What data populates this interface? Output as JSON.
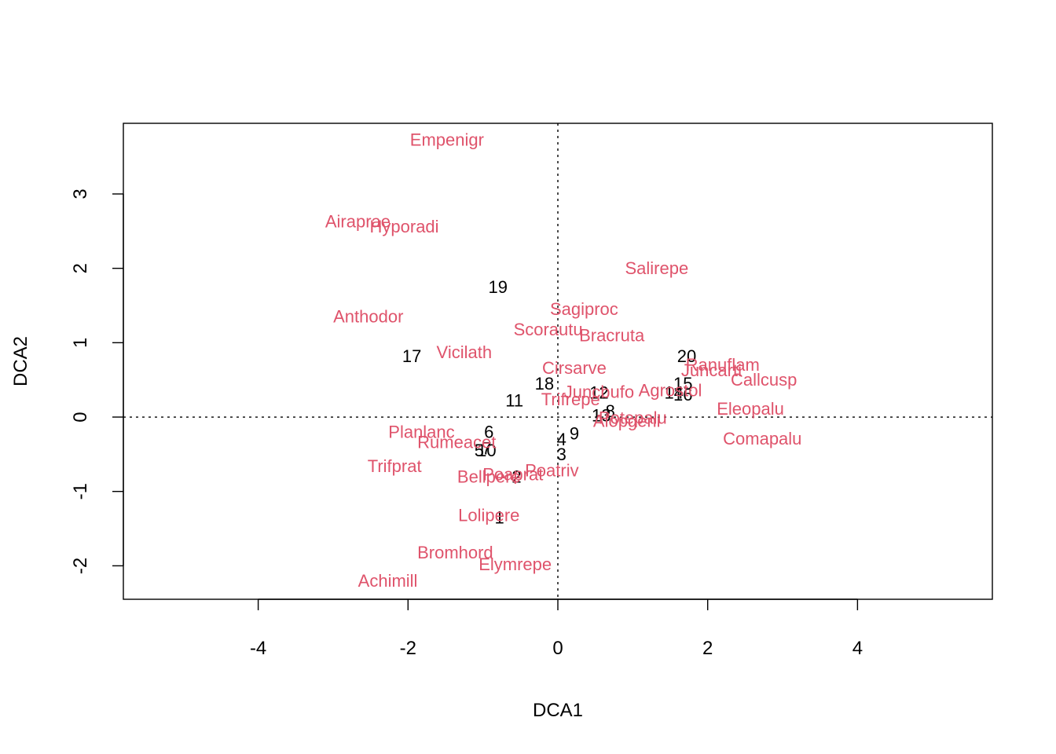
{
  "chart_data": {
    "type": "scatter",
    "xlabel": "DCA1",
    "ylabel": "DCA2",
    "xlim": [
      -5.8,
      5.8
    ],
    "ylim": [
      -2.45,
      3.95
    ],
    "x_ticks": [
      -4,
      -2,
      0,
      2,
      4
    ],
    "y_ticks": [
      -2,
      -1,
      0,
      1,
      2,
      3
    ],
    "reference_lines": {
      "x": 0,
      "y": 0,
      "style": "dotted"
    },
    "colors": {
      "species": "#DF536B",
      "sites": "#000000",
      "axes": "#000000"
    },
    "series": [
      {
        "points": [
          {
            "label": "1",
            "x": -0.78,
            "y": -1.35
          },
          {
            "label": "2",
            "x": -0.55,
            "y": -0.8
          },
          {
            "label": "3",
            "x": 0.05,
            "y": -0.5
          },
          {
            "label": "4",
            "x": 0.05,
            "y": -0.3
          },
          {
            "label": "5",
            "x": -1.05,
            "y": -0.45
          },
          {
            "label": "6",
            "x": -0.92,
            "y": -0.2
          },
          {
            "label": "7",
            "x": -0.95,
            "y": -0.42
          },
          {
            "label": "8",
            "x": 0.7,
            "y": 0.08
          },
          {
            "label": "9",
            "x": 0.22,
            "y": -0.22
          },
          {
            "label": "10",
            "x": -0.95,
            "y": -0.45
          },
          {
            "label": "11",
            "x": -0.58,
            "y": 0.22
          },
          {
            "label": "12",
            "x": 0.55,
            "y": 0.33
          },
          {
            "label": "13",
            "x": 0.58,
            "y": 0.02
          },
          {
            "label": "14",
            "x": 1.55,
            "y": 0.33
          },
          {
            "label": "15",
            "x": 1.67,
            "y": 0.45
          },
          {
            "label": "16",
            "x": 1.67,
            "y": 0.3
          },
          {
            "label": "17",
            "x": -1.95,
            "y": 0.82
          },
          {
            "label": "18",
            "x": -0.18,
            "y": 0.45
          },
          {
            "label": "19",
            "x": -0.8,
            "y": 1.75
          },
          {
            "label": "20",
            "x": 1.72,
            "y": 0.82
          }
        ]
      },
      {
        "points": [
          {
            "label": "Empenigr",
            "x": -1.48,
            "y": 3.73
          },
          {
            "label": "Airaprae",
            "x": -2.67,
            "y": 2.63
          },
          {
            "label": "Hyporadi",
            "x": -2.05,
            "y": 2.56
          },
          {
            "label": "Salirepe",
            "x": 1.32,
            "y": 2.0
          },
          {
            "label": "Anthodor",
            "x": -2.53,
            "y": 1.35
          },
          {
            "label": "Sagiproc",
            "x": 0.35,
            "y": 1.45
          },
          {
            "label": "Scorautu",
            "x": -0.13,
            "y": 1.18
          },
          {
            "label": "Bracruta",
            "x": 0.72,
            "y": 1.1
          },
          {
            "label": "Vicilath",
            "x": -1.25,
            "y": 0.87
          },
          {
            "label": "Cirsarve",
            "x": 0.22,
            "y": 0.66
          },
          {
            "label": "Ranuflam",
            "x": 2.2,
            "y": 0.7
          },
          {
            "label": "Juncarti",
            "x": 2.05,
            "y": 0.63
          },
          {
            "label": "Callcusp",
            "x": 2.75,
            "y": 0.5
          },
          {
            "label": "Juncbufo",
            "x": 0.55,
            "y": 0.34
          },
          {
            "label": "Agrostol",
            "x": 1.5,
            "y": 0.36
          },
          {
            "label": "Trifrepe",
            "x": 0.17,
            "y": 0.24
          },
          {
            "label": "Eleopalu",
            "x": 2.57,
            "y": 0.11
          },
          {
            "label": "Potepalu",
            "x": 1.0,
            "y": -0.01
          },
          {
            "label": "Alopgeni",
            "x": 0.92,
            "y": -0.05
          },
          {
            "label": "Planlanc",
            "x": -1.82,
            "y": -0.2
          },
          {
            "label": "Rumeacet",
            "x": -1.35,
            "y": -0.34
          },
          {
            "label": "Comapalu",
            "x": 2.73,
            "y": -0.29
          },
          {
            "label": "Trifprat",
            "x": -2.18,
            "y": -0.66
          },
          {
            "label": "Poaprat",
            "x": -0.6,
            "y": -0.77
          },
          {
            "label": "Poatriv",
            "x": -0.08,
            "y": -0.72
          },
          {
            "label": "Bellpere",
            "x": -0.92,
            "y": -0.8
          },
          {
            "label": "Lolipere",
            "x": -0.92,
            "y": -1.32
          },
          {
            "label": "Bromhord",
            "x": -1.37,
            "y": -1.82
          },
          {
            "label": "Elymrepe",
            "x": -0.57,
            "y": -1.98
          },
          {
            "label": "Achimill",
            "x": -2.27,
            "y": -2.2
          }
        ]
      }
    ]
  }
}
